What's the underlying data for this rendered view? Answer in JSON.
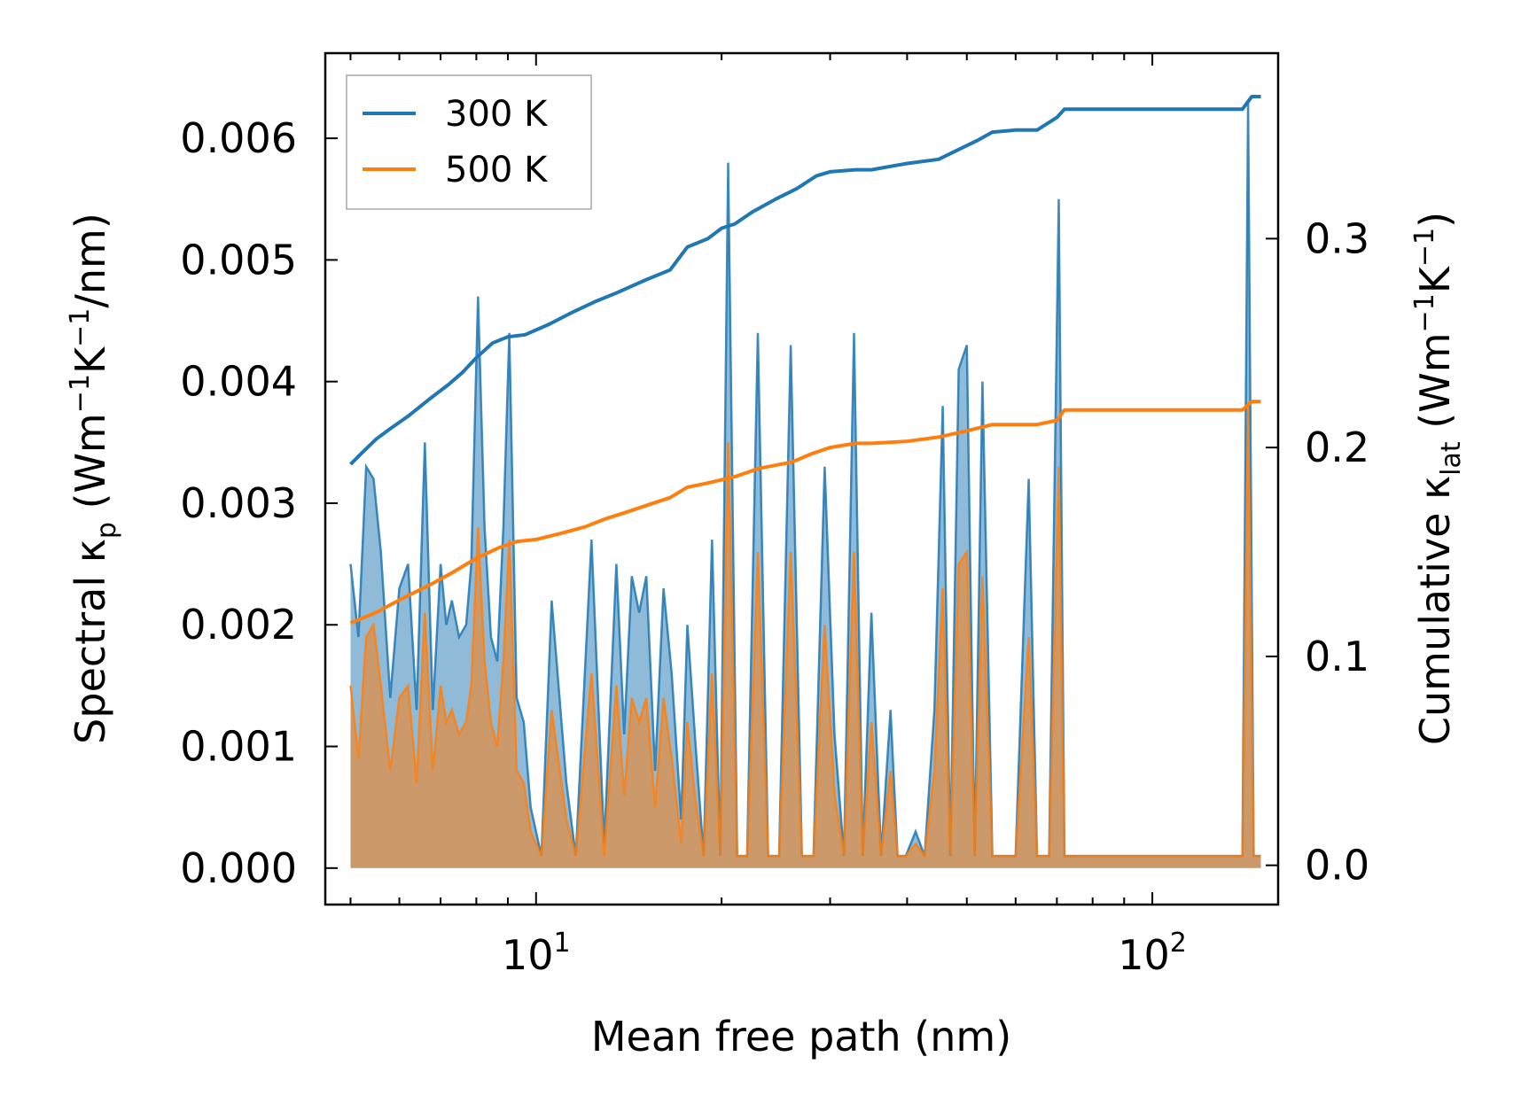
{
  "chart_data": {
    "type": "line",
    "xscale": "log",
    "xlabel": "Mean free path (nm)",
    "ylabel_left": {
      "prefix": "Spectral κ",
      "sub": "p",
      "unit_open": " (Wm",
      "sup1": "−1",
      "mid": "K",
      "sup2": "−1",
      "unit_close": "/nm)"
    },
    "ylabel_right": {
      "prefix": "Cumulative κ",
      "sub": "lat",
      "unit_open": " (Wm",
      "sup1": "−1",
      "mid": "K",
      "sup2": "−1",
      "unit_close": ")"
    },
    "xlim": [
      4.55,
      160
    ],
    "ylim_left": [
      -0.0003,
      0.0067
    ],
    "ylim_right": [
      -0.0188,
      0.3888
    ],
    "x_ticks": [
      {
        "base": "10",
        "exp": "1",
        "value": 10
      },
      {
        "base": "10",
        "exp": "2",
        "value": 100
      }
    ],
    "y_ticks_left": [
      {
        "label": "0.000",
        "value": 0.0
      },
      {
        "label": "0.001",
        "value": 0.001
      },
      {
        "label": "0.002",
        "value": 0.002
      },
      {
        "label": "0.003",
        "value": 0.003
      },
      {
        "label": "0.004",
        "value": 0.004
      },
      {
        "label": "0.005",
        "value": 0.005
      },
      {
        "label": "0.006",
        "value": 0.006
      }
    ],
    "y_ticks_right": [
      {
        "label": "0.0",
        "value": 0.0
      },
      {
        "label": "0.1",
        "value": 0.1
      },
      {
        "label": "0.2",
        "value": 0.2
      },
      {
        "label": "0.3",
        "value": 0.3
      }
    ],
    "legend": {
      "position": "top-left",
      "entries": [
        "300 K",
        "500 K"
      ]
    },
    "series": [
      {
        "name": "300 K",
        "color": "#1f77b4",
        "cumulative": [
          [
            5.0,
            0.192
          ],
          [
            5.2,
            0.197
          ],
          [
            5.5,
            0.204
          ],
          [
            5.8,
            0.209
          ],
          [
            6.2,
            0.215
          ],
          [
            6.7,
            0.223
          ],
          [
            7.2,
            0.23
          ],
          [
            7.6,
            0.236
          ],
          [
            8.0,
            0.243
          ],
          [
            8.5,
            0.25
          ],
          [
            9.0,
            0.253
          ],
          [
            9.6,
            0.254
          ],
          [
            10.5,
            0.259
          ],
          [
            11.5,
            0.265
          ],
          [
            12.5,
            0.27
          ],
          [
            13.5,
            0.274
          ],
          [
            15.0,
            0.28
          ],
          [
            16.5,
            0.285
          ],
          [
            17.6,
            0.296
          ],
          [
            19.0,
            0.3
          ],
          [
            20.0,
            0.305
          ],
          [
            21.0,
            0.307
          ],
          [
            22.5,
            0.313
          ],
          [
            24.5,
            0.319
          ],
          [
            26.5,
            0.324
          ],
          [
            28.5,
            0.33
          ],
          [
            30.0,
            0.332
          ],
          [
            33.0,
            0.333
          ],
          [
            35.0,
            0.333
          ],
          [
            40.0,
            0.336
          ],
          [
            45.0,
            0.338
          ],
          [
            48.0,
            0.342
          ],
          [
            52.0,
            0.347
          ],
          [
            55.0,
            0.351
          ],
          [
            60.0,
            0.352
          ],
          [
            65.0,
            0.352
          ],
          [
            70.0,
            0.358
          ],
          [
            72.0,
            0.362
          ],
          [
            100.0,
            0.362
          ],
          [
            140.0,
            0.362
          ],
          [
            145.0,
            0.368
          ],
          [
            150.0,
            0.368
          ]
        ],
        "spectral": [
          [
            5.0,
            0.0025
          ],
          [
            5.15,
            0.0019
          ],
          [
            5.3,
            0.0033
          ],
          [
            5.45,
            0.0032
          ],
          [
            5.6,
            0.0026
          ],
          [
            5.8,
            0.0014
          ],
          [
            6.0,
            0.0023
          ],
          [
            6.2,
            0.0025
          ],
          [
            6.4,
            0.0013
          ],
          [
            6.6,
            0.0035
          ],
          [
            6.8,
            0.0013
          ],
          [
            7.0,
            0.0025
          ],
          [
            7.15,
            0.002
          ],
          [
            7.3,
            0.0022
          ],
          [
            7.5,
            0.0019
          ],
          [
            7.7,
            0.002
          ],
          [
            7.85,
            0.0025
          ],
          [
            8.05,
            0.0047
          ],
          [
            8.25,
            0.0028
          ],
          [
            8.45,
            0.0019
          ],
          [
            8.65,
            0.0017
          ],
          [
            8.85,
            0.0028
          ],
          [
            9.05,
            0.0044
          ],
          [
            9.3,
            0.0014
          ],
          [
            9.55,
            0.0012
          ],
          [
            9.8,
            0.0005
          ],
          [
            10.2,
            0.0001
          ],
          [
            10.6,
            0.0022
          ],
          [
            11.2,
            0.0007
          ],
          [
            11.6,
            0.0001
          ],
          [
            12.3,
            0.0027
          ],
          [
            12.9,
            0.0002
          ],
          [
            13.5,
            0.0025
          ],
          [
            13.9,
            0.0011
          ],
          [
            14.3,
            0.0024
          ],
          [
            14.7,
            0.0021
          ],
          [
            15.1,
            0.0024
          ],
          [
            15.6,
            0.0008
          ],
          [
            16.1,
            0.0023
          ],
          [
            16.6,
            0.0016
          ],
          [
            17.2,
            0.0004
          ],
          [
            17.6,
            0.002
          ],
          [
            18.1,
            0.0011
          ],
          [
            18.7,
            0.0001
          ],
          [
            19.3,
            0.0027
          ],
          [
            19.9,
            0.0001
          ],
          [
            20.5,
            0.0058
          ],
          [
            21.2,
            0.0001
          ],
          [
            22.0,
            0.0001
          ],
          [
            22.9,
            0.0044
          ],
          [
            23.8,
            0.0001
          ],
          [
            24.8,
            0.0001
          ],
          [
            25.9,
            0.0043
          ],
          [
            27.0,
            0.0001
          ],
          [
            28.2,
            0.0001
          ],
          [
            29.4,
            0.0033
          ],
          [
            30.5,
            0.0011
          ],
          [
            31.6,
            0.0001
          ],
          [
            32.8,
            0.0044
          ],
          [
            33.9,
            0.0001
          ],
          [
            35.0,
            0.0021
          ],
          [
            36.3,
            0.0001
          ],
          [
            37.6,
            0.0013
          ],
          [
            38.6,
            0.0001
          ],
          [
            39.8,
            0.0001
          ],
          [
            41.3,
            0.0003
          ],
          [
            42.7,
            0.0001
          ],
          [
            44.3,
            0.0013
          ],
          [
            45.7,
            0.0038
          ],
          [
            47.0,
            0.0001
          ],
          [
            48.5,
            0.0041
          ],
          [
            50.0,
            0.0043
          ],
          [
            51.5,
            0.0001
          ],
          [
            53.0,
            0.004
          ],
          [
            55.0,
            0.0001
          ],
          [
            60.0,
            0.0001
          ],
          [
            63.0,
            0.0032
          ],
          [
            65.0,
            0.0001
          ],
          [
            68.0,
            0.0001
          ],
          [
            70.5,
            0.0055
          ],
          [
            72.0,
            0.0001
          ],
          [
            100.0,
            0.0001
          ],
          [
            140.0,
            0.0001
          ],
          [
            143.0,
            0.0063
          ],
          [
            146.0,
            0.0001
          ],
          [
            150.0,
            0.0001
          ]
        ]
      },
      {
        "name": "500 K",
        "color": "#ff7f0e",
        "cumulative": [
          [
            5.0,
            0.116
          ],
          [
            5.5,
            0.121
          ],
          [
            6.0,
            0.127
          ],
          [
            6.7,
            0.134
          ],
          [
            7.3,
            0.14
          ],
          [
            8.0,
            0.147
          ],
          [
            8.7,
            0.152
          ],
          [
            9.3,
            0.155
          ],
          [
            10.0,
            0.156
          ],
          [
            11.0,
            0.159
          ],
          [
            12.0,
            0.162
          ],
          [
            13.0,
            0.166
          ],
          [
            14.0,
            0.169
          ],
          [
            15.0,
            0.172
          ],
          [
            16.5,
            0.176
          ],
          [
            17.6,
            0.181
          ],
          [
            19.0,
            0.183
          ],
          [
            21.0,
            0.186
          ],
          [
            23.0,
            0.19
          ],
          [
            26.0,
            0.193
          ],
          [
            28.0,
            0.197
          ],
          [
            30.0,
            0.2
          ],
          [
            33.0,
            0.202
          ],
          [
            35.0,
            0.202
          ],
          [
            40.0,
            0.203
          ],
          [
            45.0,
            0.205
          ],
          [
            50.0,
            0.208
          ],
          [
            55.0,
            0.211
          ],
          [
            65.0,
            0.211
          ],
          [
            70.0,
            0.213
          ],
          [
            72.0,
            0.218
          ],
          [
            100.0,
            0.218
          ],
          [
            140.0,
            0.218
          ],
          [
            145.0,
            0.222
          ],
          [
            150.0,
            0.222
          ]
        ],
        "spectral": [
          [
            5.0,
            0.0015
          ],
          [
            5.15,
            0.0009
          ],
          [
            5.3,
            0.0019
          ],
          [
            5.45,
            0.002
          ],
          [
            5.6,
            0.0015
          ],
          [
            5.8,
            0.0008
          ],
          [
            6.0,
            0.0014
          ],
          [
            6.2,
            0.0015
          ],
          [
            6.4,
            0.0007
          ],
          [
            6.6,
            0.0021
          ],
          [
            6.8,
            0.0008
          ],
          [
            7.0,
            0.0015
          ],
          [
            7.15,
            0.0012
          ],
          [
            7.3,
            0.0013
          ],
          [
            7.5,
            0.0011
          ],
          [
            7.7,
            0.0012
          ],
          [
            7.85,
            0.0015
          ],
          [
            8.05,
            0.0028
          ],
          [
            8.25,
            0.0017
          ],
          [
            8.45,
            0.0012
          ],
          [
            8.65,
            0.001
          ],
          [
            8.85,
            0.0017
          ],
          [
            9.05,
            0.0027
          ],
          [
            9.3,
            0.0008
          ],
          [
            9.55,
            0.0007
          ],
          [
            9.8,
            0.0003
          ],
          [
            10.2,
            0.0001
          ],
          [
            10.6,
            0.0013
          ],
          [
            11.2,
            0.0004
          ],
          [
            11.6,
            0.0001
          ],
          [
            12.3,
            0.0016
          ],
          [
            12.9,
            0.0001
          ],
          [
            13.5,
            0.0015
          ],
          [
            13.9,
            0.0006
          ],
          [
            14.3,
            0.0014
          ],
          [
            14.7,
            0.0012
          ],
          [
            15.1,
            0.0014
          ],
          [
            15.6,
            0.0005
          ],
          [
            16.1,
            0.0014
          ],
          [
            16.6,
            0.0009
          ],
          [
            17.2,
            0.0002
          ],
          [
            17.6,
            0.0012
          ],
          [
            18.1,
            0.0006
          ],
          [
            18.7,
            0.0001
          ],
          [
            19.3,
            0.0016
          ],
          [
            19.9,
            0.0001
          ],
          [
            20.5,
            0.0035
          ],
          [
            21.2,
            0.0001
          ],
          [
            22.0,
            0.0001
          ],
          [
            22.9,
            0.0026
          ],
          [
            23.8,
            0.0001
          ],
          [
            24.8,
            0.0001
          ],
          [
            25.9,
            0.0026
          ],
          [
            27.0,
            0.0001
          ],
          [
            28.2,
            0.0001
          ],
          [
            29.4,
            0.002
          ],
          [
            30.5,
            0.0006
          ],
          [
            31.6,
            0.0001
          ],
          [
            32.8,
            0.0026
          ],
          [
            33.9,
            0.0001
          ],
          [
            35.0,
            0.0012
          ],
          [
            36.3,
            0.0001
          ],
          [
            37.6,
            0.0008
          ],
          [
            38.6,
            0.0001
          ],
          [
            39.8,
            0.0001
          ],
          [
            41.3,
            0.0002
          ],
          [
            42.7,
            0.0001
          ],
          [
            44.3,
            0.0008
          ],
          [
            45.7,
            0.0023
          ],
          [
            47.0,
            0.0001
          ],
          [
            48.5,
            0.0025
          ],
          [
            50.0,
            0.0026
          ],
          [
            51.5,
            0.0001
          ],
          [
            53.0,
            0.0024
          ],
          [
            55.0,
            0.0001
          ],
          [
            60.0,
            0.0001
          ],
          [
            63.0,
            0.0019
          ],
          [
            65.0,
            0.0001
          ],
          [
            68.0,
            0.0001
          ],
          [
            70.5,
            0.0033
          ],
          [
            72.0,
            0.0001
          ],
          [
            100.0,
            0.0001
          ],
          [
            140.0,
            0.0001
          ],
          [
            143.0,
            0.0038
          ],
          [
            146.0,
            0.0001
          ],
          [
            150.0,
            0.0001
          ]
        ]
      }
    ]
  }
}
